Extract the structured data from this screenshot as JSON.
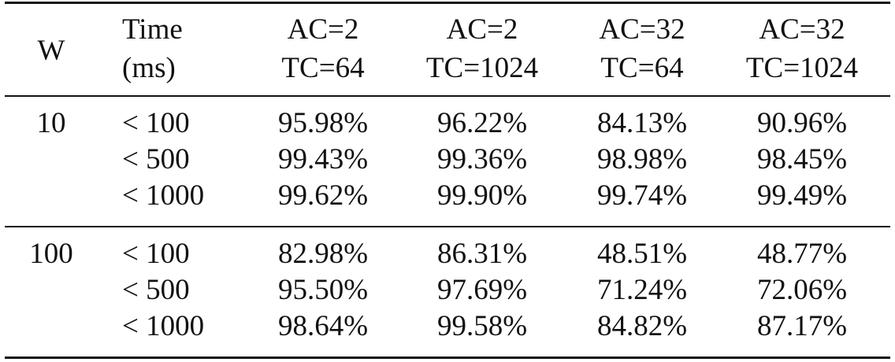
{
  "table": {
    "header": [
      [
        "W"
      ],
      [
        "Time",
        "(ms)"
      ],
      [
        "AC=2",
        "TC=64"
      ],
      [
        "AC=2",
        "TC=1024"
      ],
      [
        "AC=32",
        "TC=64"
      ],
      [
        "AC=32",
        "TC=1024"
      ]
    ],
    "groups": [
      {
        "w": "10",
        "rows": [
          [
            "< 100",
            "95.98%",
            "96.22%",
            "84.13%",
            "90.96%"
          ],
          [
            "< 500",
            "99.43%",
            "99.36%",
            "98.98%",
            "98.45%"
          ],
          [
            "< 1000",
            "99.62%",
            "99.90%",
            "99.74%",
            "99.49%"
          ]
        ]
      },
      {
        "w": "100",
        "rows": [
          [
            "< 100",
            "82.98%",
            "86.31%",
            "48.51%",
            "48.77%"
          ],
          [
            "< 500",
            "95.50%",
            "97.69%",
            "71.24%",
            "72.06%"
          ],
          [
            "< 1000",
            "98.64%",
            "99.58%",
            "84.82%",
            "87.17%"
          ]
        ]
      }
    ]
  }
}
